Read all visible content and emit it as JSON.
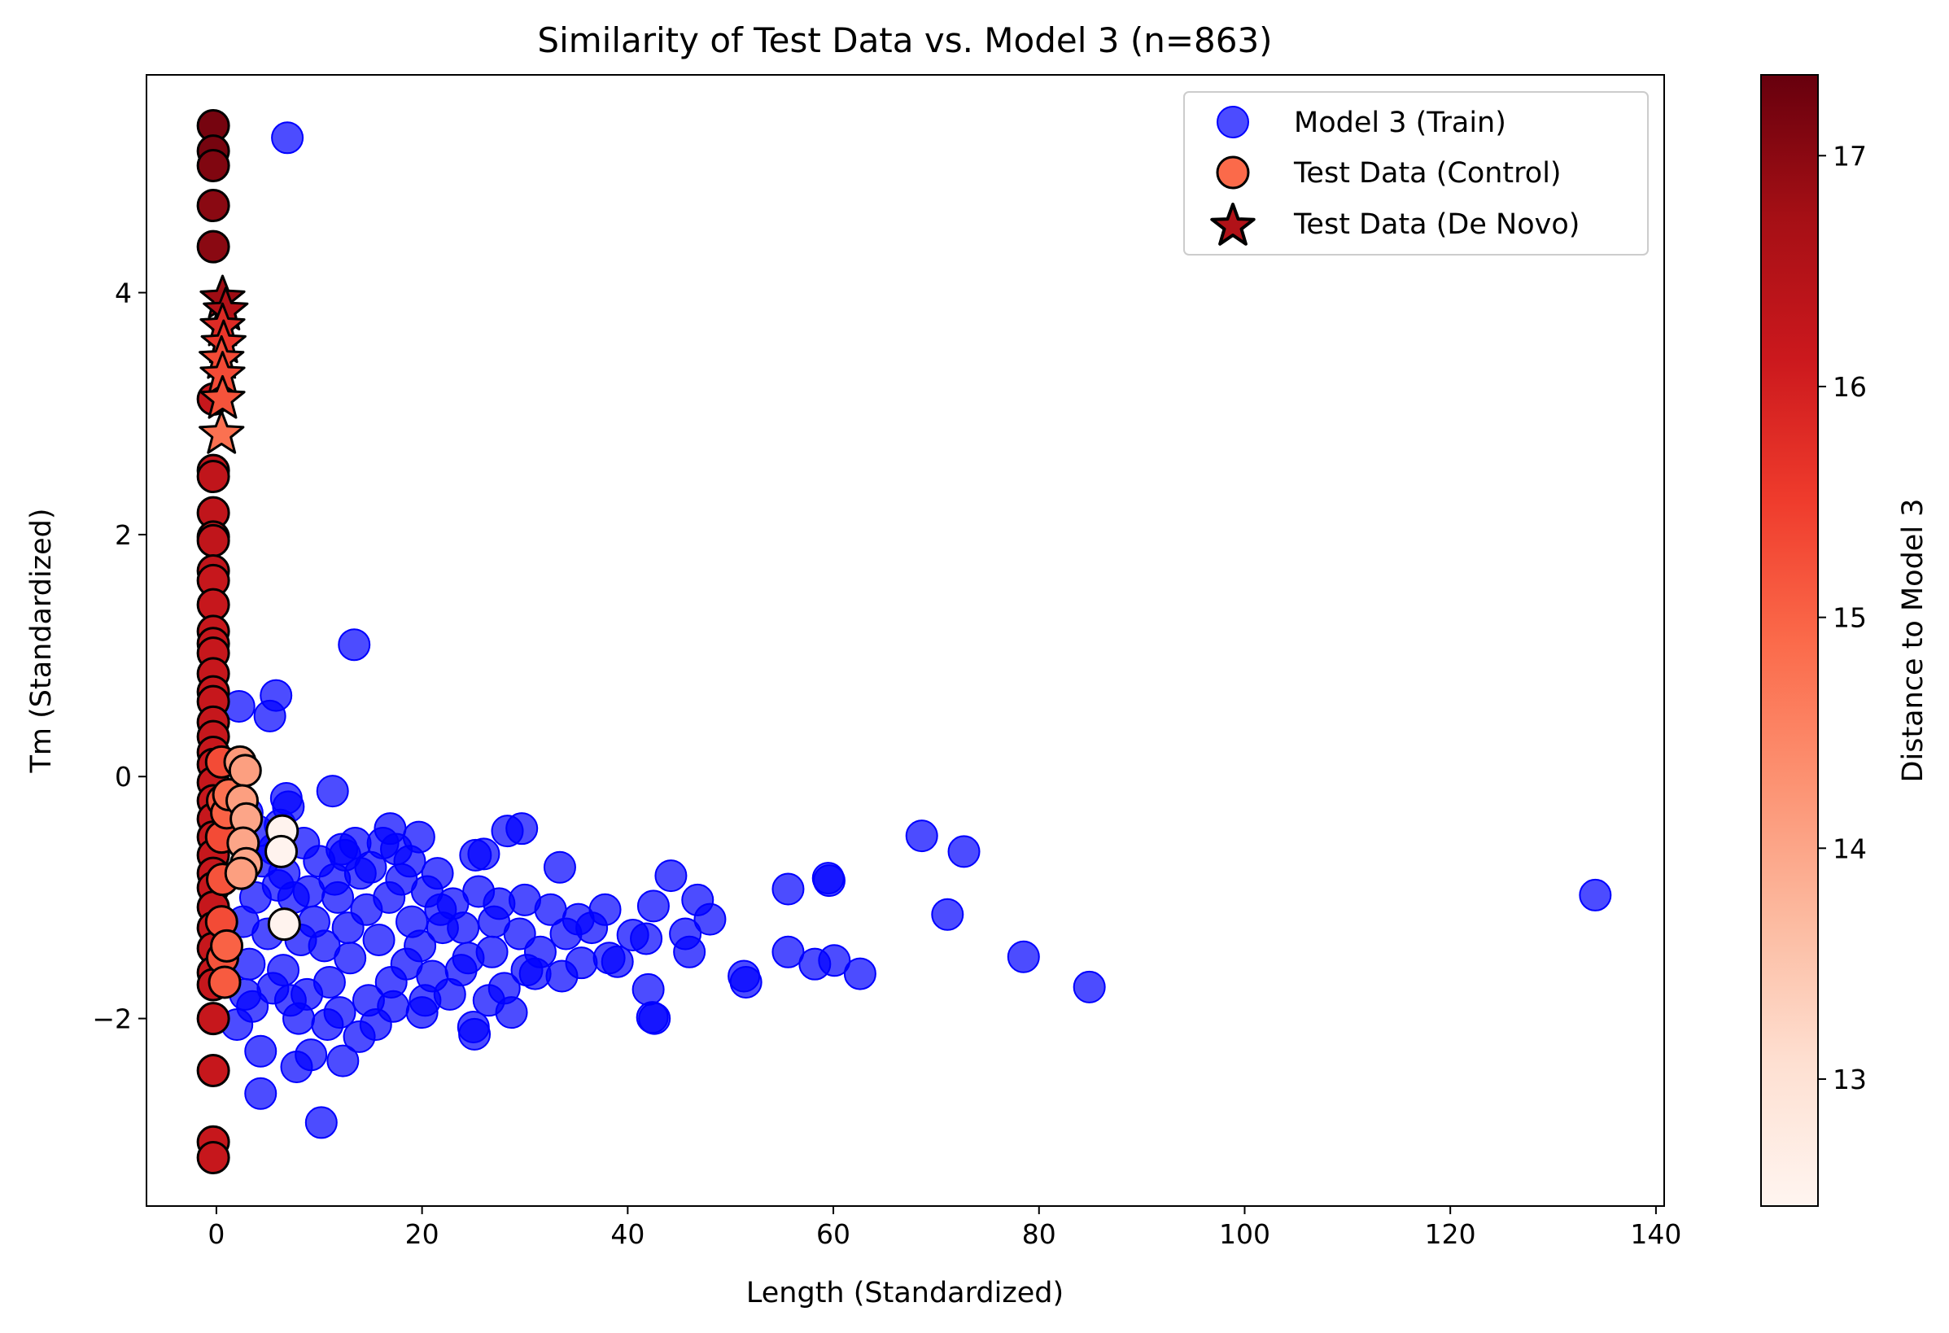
{
  "chart_data": {
    "type": "scatter",
    "title": "Similarity of Test Data vs. Model 3 (n=863)",
    "xlabel": "Length (Standardized)",
    "ylabel": "Tm (Standardized)",
    "xlim": [
      -6.8,
      140.8
    ],
    "ylim": [
      -3.55,
      5.8
    ],
    "xticks": [
      0,
      20,
      40,
      60,
      80,
      100,
      120,
      140
    ],
    "yticks": [
      -2,
      0,
      2,
      4
    ],
    "grid": false,
    "legend_position": "top-right",
    "colorbar": {
      "label": "Distance to Model 3",
      "range": [
        12.45,
        17.35
      ],
      "ticks": [
        13,
        14,
        15,
        16,
        17
      ],
      "colormap": "Reds"
    },
    "colors": {
      "train": "#0000ff",
      "marker_edge": "#000000"
    },
    "series": [
      {
        "name": "Model 3 (Train)",
        "marker": "circle",
        "points": [
          [
            6.9,
            5.28
          ],
          [
            13.4,
            1.09
          ],
          [
            5.8,
            0.67
          ],
          [
            2.2,
            0.58
          ],
          [
            5.2,
            0.5
          ],
          [
            11.3,
            -0.12
          ],
          [
            6.8,
            -0.18
          ],
          [
            16.9,
            -0.43
          ],
          [
            19.7,
            -0.5
          ],
          [
            28.3,
            -0.45
          ],
          [
            29.7,
            -0.43
          ],
          [
            12.2,
            -0.6
          ],
          [
            25.2,
            -0.65
          ],
          [
            26.0,
            -0.64
          ],
          [
            21.5,
            -0.8
          ],
          [
            33.4,
            -0.75
          ],
          [
            44.2,
            -0.82
          ],
          [
            30.0,
            -1.02
          ],
          [
            35.2,
            -1.18
          ],
          [
            37.8,
            -1.1
          ],
          [
            42.5,
            -1.07
          ],
          [
            46.8,
            -1.02
          ],
          [
            48.0,
            -1.18
          ],
          [
            45.6,
            -1.3
          ],
          [
            40.5,
            -1.31
          ],
          [
            41.8,
            -1.34
          ],
          [
            38.2,
            -1.5
          ],
          [
            39.0,
            -1.53
          ],
          [
            46.0,
            -1.45
          ],
          [
            35.5,
            -1.54
          ],
          [
            31.0,
            -1.63
          ],
          [
            33.6,
            -1.65
          ],
          [
            42.0,
            -1.76
          ],
          [
            42.4,
            -1.99
          ],
          [
            42.6,
            -2.0
          ],
          [
            28.7,
            -1.95
          ],
          [
            25.0,
            -2.07
          ],
          [
            25.1,
            -2.13
          ],
          [
            51.3,
            -1.65
          ],
          [
            51.5,
            -1.7
          ],
          [
            55.6,
            -0.93
          ],
          [
            55.6,
            -1.45
          ],
          [
            58.2,
            -1.55
          ],
          [
            59.5,
            -0.84
          ],
          [
            59.6,
            -0.86
          ],
          [
            60.1,
            -1.52
          ],
          [
            62.6,
            -1.63
          ],
          [
            68.6,
            -0.49
          ],
          [
            72.7,
            -0.62
          ],
          [
            71.1,
            -1.14
          ],
          [
            78.5,
            -1.49
          ],
          [
            84.9,
            -1.74
          ],
          [
            134.1,
            -0.98
          ],
          [
            10.2,
            -2.86
          ],
          [
            4.3,
            -2.62
          ],
          [
            12.3,
            -2.35
          ],
          [
            7.8,
            -2.4
          ],
          [
            4.3,
            -2.27
          ],
          [
            9.2,
            -2.3
          ],
          [
            13.9,
            -2.15
          ],
          [
            15.5,
            -2.05
          ],
          [
            2.0,
            -2.05
          ],
          [
            3.5,
            -1.9
          ],
          [
            8.0,
            -2.0
          ],
          [
            12.0,
            -1.95
          ],
          [
            17.2,
            -1.9
          ],
          [
            20.3,
            -1.85
          ],
          [
            22.7,
            -1.8
          ],
          [
            26.5,
            -1.85
          ],
          [
            28.0,
            -1.75
          ],
          [
            30.2,
            -1.6
          ],
          [
            24.5,
            -1.5
          ],
          [
            22.0,
            -1.25
          ],
          [
            19.0,
            -1.2
          ],
          [
            25.5,
            -0.95
          ],
          [
            27.0,
            -1.2
          ],
          [
            23.0,
            -1.05
          ],
          [
            20.5,
            -0.95
          ],
          [
            18.0,
            -0.85
          ],
          [
            15.0,
            -0.75
          ],
          [
            17.5,
            -0.6
          ],
          [
            14.0,
            -0.8
          ],
          [
            10.0,
            -0.7
          ],
          [
            8.5,
            -0.55
          ],
          [
            7.0,
            -0.25
          ],
          [
            6.2,
            -0.4
          ],
          [
            4.5,
            -0.7
          ],
          [
            3.8,
            -1.0
          ],
          [
            5.0,
            -1.3
          ],
          [
            6.5,
            -1.6
          ],
          [
            8.8,
            -1.8
          ],
          [
            11.0,
            -1.7
          ],
          [
            13.0,
            -1.5
          ],
          [
            15.8,
            -1.35
          ],
          [
            18.5,
            -1.55
          ],
          [
            21.0,
            -1.65
          ],
          [
            9.5,
            -1.2
          ],
          [
            11.8,
            -1.0
          ],
          [
            14.6,
            -1.1
          ],
          [
            16.8,
            -1.0
          ],
          [
            7.5,
            -1.0
          ],
          [
            10.5,
            -1.4
          ],
          [
            12.8,
            -1.25
          ],
          [
            6.0,
            -0.9
          ],
          [
            8.2,
            -1.35
          ],
          [
            3.2,
            -1.55
          ],
          [
            2.6,
            -1.2
          ],
          [
            19.8,
            -1.4
          ],
          [
            23.8,
            -1.6
          ],
          [
            26.8,
            -1.45
          ],
          [
            29.5,
            -1.3
          ],
          [
            31.5,
            -1.45
          ],
          [
            34.0,
            -1.3
          ],
          [
            36.5,
            -1.25
          ],
          [
            32.5,
            -1.1
          ],
          [
            16.2,
            -0.55
          ],
          [
            18.8,
            -0.7
          ],
          [
            13.5,
            -0.55
          ],
          [
            11.5,
            -0.85
          ],
          [
            9.0,
            -0.95
          ],
          [
            21.8,
            -1.1
          ],
          [
            24.0,
            -1.25
          ],
          [
            27.5,
            -1.05
          ],
          [
            17.0,
            -1.7
          ],
          [
            14.8,
            -1.85
          ],
          [
            10.8,
            -2.05
          ],
          [
            7.2,
            -1.85
          ],
          [
            5.5,
            -1.75
          ],
          [
            2.8,
            -1.8
          ],
          [
            20.0,
            -1.95
          ],
          [
            3.0,
            -0.3
          ],
          [
            4.0,
            -0.45
          ],
          [
            5.6,
            -0.6
          ],
          [
            6.6,
            -0.8
          ],
          [
            12.5,
            -0.65
          ]
        ]
      },
      {
        "name": "Test Data (Control)",
        "marker": "circle",
        "points": [
          [
            -0.3,
            5.38,
            17.2
          ],
          [
            -0.3,
            5.17,
            17.2
          ],
          [
            -0.3,
            5.05,
            17.1
          ],
          [
            -0.3,
            4.72,
            17.0
          ],
          [
            -0.3,
            4.38,
            17.0
          ],
          [
            -0.3,
            3.12,
            16.2
          ],
          [
            -0.3,
            2.53,
            16.3
          ],
          [
            -0.3,
            2.48,
            16.3
          ],
          [
            -0.3,
            2.18,
            16.3
          ],
          [
            -0.3,
            1.98,
            16.3
          ],
          [
            -0.3,
            1.95,
            16.3
          ],
          [
            -0.3,
            1.7,
            16.3
          ],
          [
            -0.3,
            1.62,
            16.2
          ],
          [
            -0.3,
            1.42,
            16.2
          ],
          [
            -0.3,
            1.2,
            16.2
          ],
          [
            -0.3,
            1.1,
            16.2
          ],
          [
            -0.3,
            1.02,
            16.2
          ],
          [
            -0.3,
            0.85,
            16.2
          ],
          [
            -0.3,
            0.7,
            16.2
          ],
          [
            -0.3,
            0.62,
            16.2
          ],
          [
            -0.3,
            0.45,
            16.2
          ],
          [
            -0.3,
            0.33,
            16.2
          ],
          [
            -0.3,
            0.2,
            16.2
          ],
          [
            -0.3,
            0.1,
            16.2
          ],
          [
            -0.3,
            -0.05,
            16.2
          ],
          [
            -0.3,
            -0.2,
            16.2
          ],
          [
            -0.3,
            -0.35,
            16.2
          ],
          [
            -0.3,
            -0.5,
            16.2
          ],
          [
            -0.3,
            -0.65,
            16.2
          ],
          [
            -0.3,
            -0.8,
            16.2
          ],
          [
            -0.3,
            -0.92,
            16.2
          ],
          [
            -0.3,
            -1.08,
            16.2
          ],
          [
            -0.3,
            -1.25,
            16.2
          ],
          [
            -0.3,
            -1.42,
            16.2
          ],
          [
            -0.3,
            -1.62,
            16.2
          ],
          [
            -0.3,
            -1.72,
            16.2
          ],
          [
            -0.3,
            -2.0,
            16.2
          ],
          [
            -0.3,
            -2.43,
            16.2
          ],
          [
            -0.3,
            -3.02,
            16.2
          ],
          [
            -0.3,
            -3.15,
            16.2
          ],
          [
            0.5,
            0.12,
            15.3
          ],
          [
            0.6,
            -0.2,
            15.2
          ],
          [
            0.5,
            -0.5,
            15.3
          ],
          [
            0.6,
            -0.85,
            15.2
          ],
          [
            0.5,
            -1.2,
            15.3
          ],
          [
            0.6,
            -1.5,
            15.2
          ],
          [
            0.8,
            -1.7,
            15.1
          ],
          [
            1.0,
            -0.3,
            15.0
          ],
          [
            1.2,
            -0.15,
            14.8
          ],
          [
            1.0,
            -1.4,
            15.0
          ],
          [
            2.3,
            0.12,
            14.2
          ],
          [
            2.8,
            0.05,
            14.1
          ],
          [
            2.5,
            -0.2,
            14.1
          ],
          [
            2.9,
            -0.35,
            14.0
          ],
          [
            2.6,
            -0.55,
            14.0
          ],
          [
            2.9,
            -0.72,
            14.0
          ],
          [
            2.4,
            -0.8,
            14.1
          ],
          [
            6.4,
            -0.45,
            12.5
          ],
          [
            6.3,
            -0.62,
            12.5
          ],
          [
            6.6,
            -1.22,
            12.5
          ]
        ]
      },
      {
        "name": "Test Data (De Novo)",
        "marker": "star",
        "points": [
          [
            0.6,
            3.95,
            16.8
          ],
          [
            0.9,
            3.85,
            16.5
          ],
          [
            0.6,
            3.72,
            15.8
          ],
          [
            0.7,
            3.58,
            15.6
          ],
          [
            0.5,
            3.45,
            15.3
          ],
          [
            0.6,
            3.32,
            15.3
          ],
          [
            0.6,
            3.12,
            15.2
          ],
          [
            0.5,
            2.83,
            14.8
          ]
        ]
      }
    ]
  }
}
